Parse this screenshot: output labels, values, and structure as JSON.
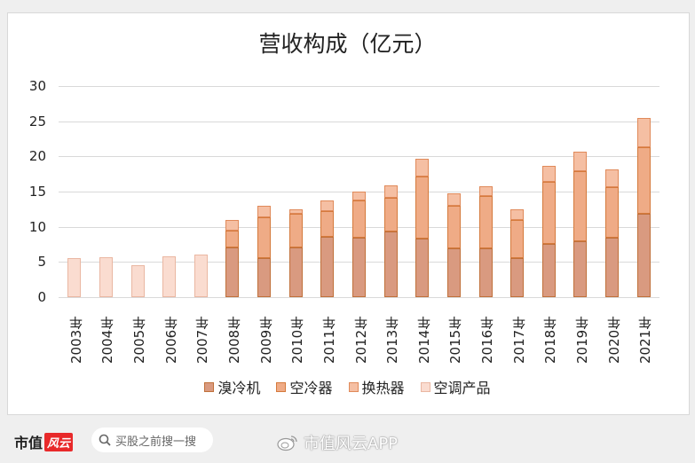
{
  "chart_data": {
    "type": "bar",
    "stacked": true,
    "title": "营收构成（亿元）",
    "xlabel": "",
    "ylabel": "",
    "ylim": [
      0,
      30
    ],
    "yticks": [
      0,
      5,
      10,
      15,
      20,
      25,
      30
    ],
    "grid": true,
    "legend_position": "bottom",
    "categories": [
      "2003年",
      "2004年",
      "2005年",
      "2006年",
      "2007年",
      "2008年",
      "2009年",
      "2010年",
      "2011年",
      "2012年",
      "2013年",
      "2014年",
      "2015年",
      "2016年",
      "2017年",
      "2018年",
      "2019年",
      "2020年",
      "2021年"
    ],
    "series": [
      {
        "name": "溴冷机",
        "color": "#d99a80",
        "border": "#c0703a",
        "values": [
          0,
          0,
          0,
          0,
          0,
          7.1,
          5.5,
          7.0,
          8.6,
          8.4,
          9.3,
          8.3,
          6.9,
          6.9,
          5.6,
          7.6,
          7.9,
          8.4,
          11.8
        ]
      },
      {
        "name": "空冷器",
        "color": "#efab86",
        "border": "#d57a3c",
        "values": [
          0,
          0,
          0,
          0,
          0,
          2.4,
          5.8,
          4.8,
          3.6,
          5.4,
          4.8,
          8.8,
          6.1,
          7.5,
          5.4,
          8.8,
          10.0,
          7.2,
          9.5
        ]
      },
      {
        "name": "换热器",
        "color": "#f5bfa3",
        "border": "#e08a5a",
        "values": [
          0,
          0,
          0,
          0,
          0,
          1.5,
          1.7,
          0.7,
          1.5,
          1.2,
          1.8,
          2.6,
          1.8,
          1.4,
          1.5,
          2.2,
          2.8,
          2.5,
          4.1
        ]
      },
      {
        "name": "空调产品",
        "color": "#fadcd0",
        "border": "#eab7a2",
        "values": [
          5.6,
          5.7,
          4.6,
          5.8,
          6.0,
          0,
          0,
          0,
          0,
          0,
          0,
          0,
          0,
          0,
          0,
          0,
          0,
          0,
          0
        ]
      }
    ]
  },
  "legend": [
    {
      "label": "溴冷机",
      "color": "#d99a80",
      "border": "#c0703a"
    },
    {
      "label": "空冷器",
      "color": "#efab86",
      "border": "#d57a3c"
    },
    {
      "label": "换热器",
      "color": "#f5bfa3",
      "border": "#e08a5a"
    },
    {
      "label": "空调产品",
      "color": "#fadcd0",
      "border": "#eab7a2"
    }
  ],
  "footer": {
    "brand_text": "市值",
    "brand_logo_text": "风云",
    "search_placeholder": "买股之前搜一搜",
    "weibo_text": "市值风云APP"
  }
}
